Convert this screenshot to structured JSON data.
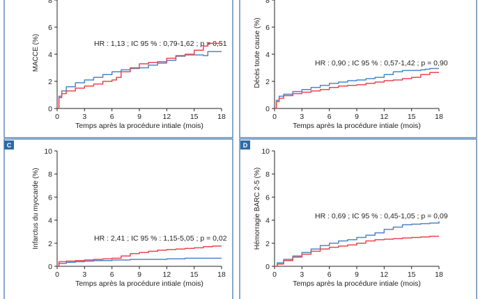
{
  "colors": {
    "blue": "#4a86c8",
    "red": "#e8464e",
    "panel_border": "#3a6ea5",
    "badge": "#2f6aa8"
  },
  "chart_data": [
    {
      "panel": "",
      "type": "line",
      "ylabel": "MACCE (%)",
      "xlabel": "Temps après la procédure intiale (mois)",
      "annotation": "HR : 1,13 ; IC 95 % : 0,79-1,62 ; p = 0,51",
      "xlim": [
        0,
        18
      ],
      "ylim": [
        0,
        8
      ],
      "xticks": [
        0,
        3,
        6,
        9,
        12,
        15,
        18
      ],
      "yticks": [
        0,
        2,
        4,
        6,
        8
      ],
      "series": [
        {
          "color": "blue",
          "x": [
            0,
            0.2,
            0.5,
            1,
            2,
            3,
            4,
            5,
            6,
            7,
            8,
            9,
            10,
            11,
            12,
            13,
            14,
            15,
            16,
            16.5,
            18
          ],
          "y": [
            0,
            0.9,
            1.3,
            1.6,
            1.9,
            2.1,
            2.3,
            2.5,
            2.7,
            2.85,
            2.95,
            3.0,
            3.2,
            3.35,
            3.55,
            3.85,
            3.95,
            3.95,
            3.9,
            4.2,
            4.2
          ]
        },
        {
          "color": "red",
          "x": [
            0,
            0.2,
            0.5,
            1,
            2,
            3,
            4,
            5,
            6,
            6.5,
            7,
            8,
            9,
            10,
            11,
            12,
            13,
            14,
            15,
            16,
            16.5,
            18
          ],
          "y": [
            0,
            0.8,
            1.1,
            1.3,
            1.5,
            1.65,
            1.8,
            2.0,
            2.1,
            2.3,
            2.7,
            3.0,
            3.3,
            3.4,
            3.45,
            3.7,
            3.9,
            4.0,
            4.3,
            4.6,
            4.8,
            4.8
          ]
        }
      ]
    },
    {
      "panel": "",
      "type": "line",
      "ylabel": "Décès toute cause (%)",
      "xlabel": "Temps après la procédure intiale (mois)",
      "annotation": "HR : 0,90 ; IC 95 % : 0,57-1,42 ; p = 0,90",
      "xlim": [
        0,
        18
      ],
      "ylim": [
        0,
        8
      ],
      "xticks": [
        0,
        3,
        6,
        9,
        12,
        15,
        18
      ],
      "yticks": [
        0,
        2,
        4,
        6,
        8
      ],
      "series": [
        {
          "color": "blue",
          "x": [
            0,
            0.2,
            0.5,
            1,
            2,
            3,
            4,
            5,
            6,
            7,
            8,
            9,
            10,
            11,
            12,
            13,
            14,
            15,
            16,
            16.5,
            17,
            18
          ],
          "y": [
            0,
            0.6,
            0.9,
            1.05,
            1.25,
            1.4,
            1.55,
            1.7,
            1.85,
            1.95,
            2.05,
            2.1,
            2.2,
            2.3,
            2.5,
            2.7,
            2.8,
            2.8,
            2.85,
            2.9,
            2.95,
            2.95
          ]
        },
        {
          "color": "red",
          "x": [
            0,
            0.2,
            0.5,
            1,
            2,
            3,
            4,
            5,
            6,
            7,
            8,
            9,
            10,
            11,
            12,
            13,
            14,
            15,
            16,
            17,
            18
          ],
          "y": [
            0,
            0.5,
            0.75,
            0.95,
            1.1,
            1.2,
            1.3,
            1.4,
            1.55,
            1.65,
            1.7,
            1.75,
            1.85,
            1.95,
            2.05,
            2.1,
            2.2,
            2.3,
            2.5,
            2.65,
            2.65
          ]
        }
      ]
    },
    {
      "panel": "C",
      "type": "line",
      "ylabel": "Infarctus du myocarde (%)",
      "xlabel": "Temps après la procédure intiale (mois)",
      "annotation": "HR : 2,41 ; IC 95 % : 1,15-5,05 ; p = 0,02",
      "xlim": [
        0,
        18
      ],
      "ylim": [
        0,
        10
      ],
      "xticks": [
        0,
        3,
        6,
        9,
        12,
        15,
        18
      ],
      "yticks": [
        0,
        2,
        4,
        6,
        8,
        10
      ],
      "series": [
        {
          "color": "blue",
          "x": [
            0,
            0.2,
            1,
            2,
            3,
            4,
            6,
            8,
            10,
            12,
            14,
            16,
            18
          ],
          "y": [
            0,
            0.25,
            0.35,
            0.4,
            0.45,
            0.5,
            0.55,
            0.6,
            0.6,
            0.65,
            0.7,
            0.7,
            0.7
          ]
        },
        {
          "color": "red",
          "x": [
            0,
            0.2,
            1,
            2,
            3,
            4,
            5,
            6,
            7,
            8,
            9,
            10,
            11,
            12,
            13,
            14,
            15,
            16,
            17,
            18
          ],
          "y": [
            0,
            0.4,
            0.45,
            0.5,
            0.55,
            0.6,
            0.65,
            0.7,
            0.9,
            1.1,
            1.2,
            1.3,
            1.4,
            1.45,
            1.5,
            1.55,
            1.6,
            1.7,
            1.75,
            1.75
          ]
        }
      ]
    },
    {
      "panel": "D",
      "type": "line",
      "ylabel": "Hémorragie BARC 2-5 (%)",
      "xlabel": "Temps après la procédure intiale (mois)",
      "annotation": "HR : 0,69 ; IC 95 % : 0,45-1,05 ; p = 0,09",
      "xlim": [
        0,
        18
      ],
      "ylim": [
        0,
        10
      ],
      "xticks": [
        0,
        3,
        6,
        9,
        12,
        15,
        18
      ],
      "yticks": [
        0,
        2,
        4,
        6,
        8,
        10
      ],
      "series": [
        {
          "color": "blue",
          "x": [
            0,
            0.3,
            1,
            2,
            3,
            4,
            5,
            6,
            7,
            8,
            9,
            10,
            11,
            12,
            13,
            14,
            15,
            16,
            17,
            18
          ],
          "y": [
            0,
            0.3,
            0.6,
            0.9,
            1.2,
            1.5,
            1.8,
            2.0,
            2.2,
            2.3,
            2.5,
            2.7,
            2.9,
            3.2,
            3.4,
            3.6,
            3.65,
            3.7,
            3.75,
            3.9
          ]
        },
        {
          "color": "red",
          "x": [
            0,
            0.3,
            1,
            2,
            3,
            4,
            5,
            6,
            7,
            8,
            9,
            10,
            11,
            12,
            13,
            14,
            15,
            16,
            17,
            18
          ],
          "y": [
            0,
            0.2,
            0.5,
            0.8,
            1.05,
            1.3,
            1.5,
            1.65,
            1.75,
            1.85,
            2.0,
            2.2,
            2.3,
            2.35,
            2.4,
            2.45,
            2.5,
            2.55,
            2.6,
            2.6
          ]
        }
      ]
    }
  ]
}
